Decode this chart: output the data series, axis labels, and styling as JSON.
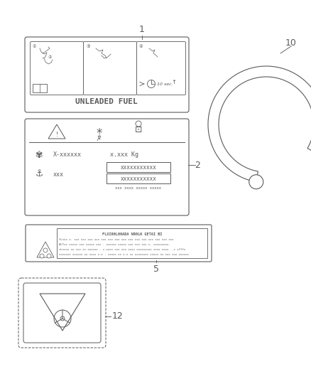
{
  "bg_color": "#ffffff",
  "lc": "#5a5a5a",
  "lw": 0.8,
  "item1_text": "UNLEADED FUEL",
  "item1_label": "1",
  "item2_label": "2",
  "item5_label": "5",
  "item10_label": "10",
  "item12_label": "12",
  "label2_row1a": "X-xxxxxx",
  "label2_row1b": "x.xxx Kg",
  "label2_box1": "xxxxxxxxxxx",
  "label2_box2": "xxxxxxxxxxx",
  "label2_small": "xxx xxxx xxxxx xxxxx",
  "label5_title": "FLXI00L00ADA NR0LN GETAI BI",
  "label5_lines": [
    "fLxxx x. xxx xxx xxx xxx xxx xxx xxx xxx xxx xxx xxx xxx xxx xxx xxx",
    "ALTxx xxxxx xxx xxxxx xxx . xxxxxx xxxxx xxx xxx xxx x. xxxxxxxxx.",
    "xLxxxx xx xxx xx xxxxxx . x.xxxx xxx xxx xxxx xxxxxxxxx xxxx xxxx . x xfffx",
    "xxxxxxx xxxxxx xx xxxx x.x . xxxxx xx x.x xx xxxxxxxx xxxxx xx xxx xxx xxxxxx"
  ]
}
